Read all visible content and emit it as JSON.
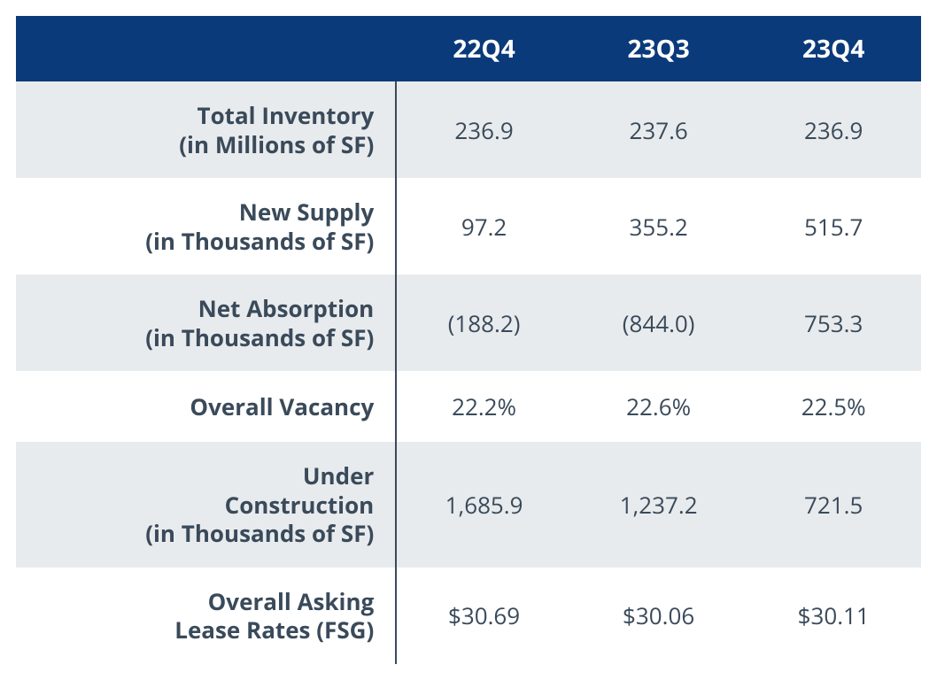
{
  "table": {
    "type": "table",
    "header_bg_color": "#0a3a7a",
    "header_text_color": "#ffffff",
    "row_even_bg": "#e8ebed",
    "row_odd_bg": "#ffffff",
    "text_color": "#3a4a5a",
    "divider_color": "#3a4a5a",
    "header_fontsize": 28,
    "label_fontsize": 26,
    "data_fontsize": 26,
    "label_fontweight": 700,
    "data_fontweight": 400,
    "label_align": "right",
    "data_align": "center",
    "columns": [
      "",
      "22Q4",
      "23Q3",
      "23Q4"
    ],
    "column_widths_pct": [
      42,
      19.33,
      19.33,
      19.33
    ],
    "rows": [
      {
        "label_lines": [
          "Total Inventory",
          "(in Millions of SF)"
        ],
        "values": [
          "236.9",
          "237.6",
          "236.9"
        ]
      },
      {
        "label_lines": [
          "New Supply",
          "(in Thousands of SF)"
        ],
        "values": [
          "97.2",
          "355.2",
          "515.7"
        ]
      },
      {
        "label_lines": [
          "Net Absorption",
          "(in Thousands of SF)"
        ],
        "values": [
          "(188.2)",
          "(844.0)",
          "753.3"
        ]
      },
      {
        "label_lines": [
          "Overall Vacancy"
        ],
        "values": [
          "22.2%",
          "22.6%",
          "22.5%"
        ]
      },
      {
        "label_lines": [
          "Under",
          "Construction",
          "(in Thousands of SF)"
        ],
        "values": [
          "1,685.9",
          "1,237.2",
          "721.5"
        ]
      },
      {
        "label_lines": [
          "Overall Asking",
          "Lease Rates (FSG)"
        ],
        "values": [
          "$30.69",
          "$30.06",
          "$30.11"
        ]
      }
    ]
  }
}
